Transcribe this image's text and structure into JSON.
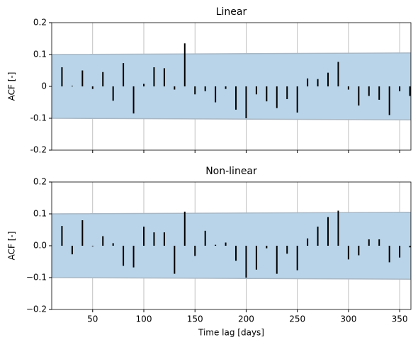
{
  "chart_data": [
    {
      "type": "stem",
      "title": "Linear",
      "ylabel": "ACF [-]",
      "x": [
        20,
        30,
        40,
        50,
        60,
        70,
        80,
        90,
        100,
        110,
        120,
        130,
        140,
        150,
        160,
        170,
        180,
        190,
        200,
        210,
        220,
        230,
        240,
        250,
        260,
        270,
        280,
        290,
        300,
        310,
        320,
        330,
        340,
        350,
        360
      ],
      "values": [
        0.06,
        0.002,
        0.05,
        -0.008,
        0.045,
        -0.045,
        0.073,
        -0.085,
        0.008,
        0.06,
        0.057,
        -0.01,
        0.135,
        -0.025,
        -0.015,
        -0.05,
        -0.008,
        -0.073,
        -0.1,
        -0.025,
        -0.047,
        -0.068,
        -0.04,
        -0.082,
        0.025,
        0.023,
        0.043,
        0.077,
        -0.01,
        -0.06,
        -0.03,
        -0.042,
        -0.09,
        -0.015,
        -0.03
      ],
      "color": "#000000",
      "band": {
        "x": [
          10,
          361
        ],
        "upper": [
          0.1,
          0.105
        ],
        "lower": [
          -0.1,
          -0.105
        ],
        "color": "#b9d4e8"
      },
      "xlim": [
        10,
        361
      ],
      "xticks": [
        50,
        100,
        150,
        200,
        250,
        300,
        350
      ],
      "xticklabels": false,
      "ylim": [
        -0.2,
        0.2
      ],
      "yticks": [
        -0.2,
        -0.1,
        0.0,
        0.1,
        0.2
      ],
      "grid": true
    },
    {
      "type": "stem",
      "title": "Non-linear",
      "ylabel": "ACF [-]",
      "xlabel": "Time lag [days]",
      "x": [
        20,
        30,
        40,
        50,
        60,
        70,
        80,
        90,
        100,
        110,
        120,
        130,
        140,
        150,
        160,
        170,
        180,
        190,
        200,
        210,
        220,
        230,
        240,
        250,
        260,
        270,
        280,
        290,
        300,
        310,
        320,
        330,
        340,
        350,
        360
      ],
      "values": [
        0.062,
        -0.027,
        0.08,
        -0.002,
        0.03,
        0.008,
        -0.063,
        -0.068,
        0.06,
        0.042,
        0.042,
        -0.088,
        0.107,
        -0.032,
        0.047,
        0.003,
        0.01,
        -0.047,
        -0.1,
        -0.075,
        -0.008,
        -0.088,
        -0.025,
        -0.077,
        0.023,
        0.06,
        0.09,
        0.11,
        -0.043,
        -0.03,
        0.02,
        0.02,
        -0.052,
        -0.037,
        -0.005
      ],
      "color": "#000000",
      "band": {
        "x": [
          10,
          361
        ],
        "upper": [
          0.1,
          0.105
        ],
        "lower": [
          -0.1,
          -0.105
        ],
        "color": "#b9d4e8"
      },
      "xlim": [
        10,
        361
      ],
      "xticks": [
        50,
        100,
        150,
        200,
        250,
        300,
        350
      ],
      "xticklabels": true,
      "ylim": [
        -0.2,
        0.2
      ],
      "yticks": [
        {
          "value": -0.2,
          "label": "−0.2"
        },
        {
          "value": -0.1,
          "label": "−0.1"
        },
        {
          "value": 0.0,
          "label": "0.0"
        },
        {
          "value": 0.1,
          "label": "0.1"
        },
        {
          "value": 0.2,
          "label": "0.2"
        }
      ],
      "grid": true
    }
  ]
}
